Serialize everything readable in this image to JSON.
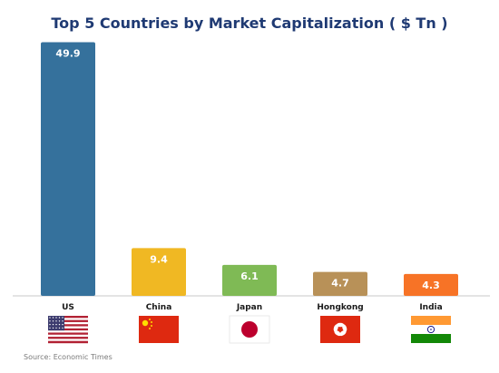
{
  "chart_data": {
    "type": "bar",
    "title": "Top 5 Countries by Market Capitalization ( $ Tn )",
    "categories": [
      "US",
      "China",
      "Japan",
      "Hongkong",
      "India"
    ],
    "values": [
      49.9,
      9.4,
      6.1,
      4.7,
      4.3
    ],
    "value_labels": [
      "49.9",
      "9.4",
      "6.1",
      "4.7",
      "4.3"
    ],
    "colors": [
      "#35719c",
      "#f0b823",
      "#7fba55",
      "#b89158",
      "#f77326"
    ],
    "flags": [
      "us-flag",
      "china-flag",
      "japan-flag",
      "hongkong-flag",
      "india-flag"
    ],
    "ylim": [
      0,
      50
    ],
    "grid": false,
    "legend": "none"
  },
  "source": "Source: Economic Times"
}
